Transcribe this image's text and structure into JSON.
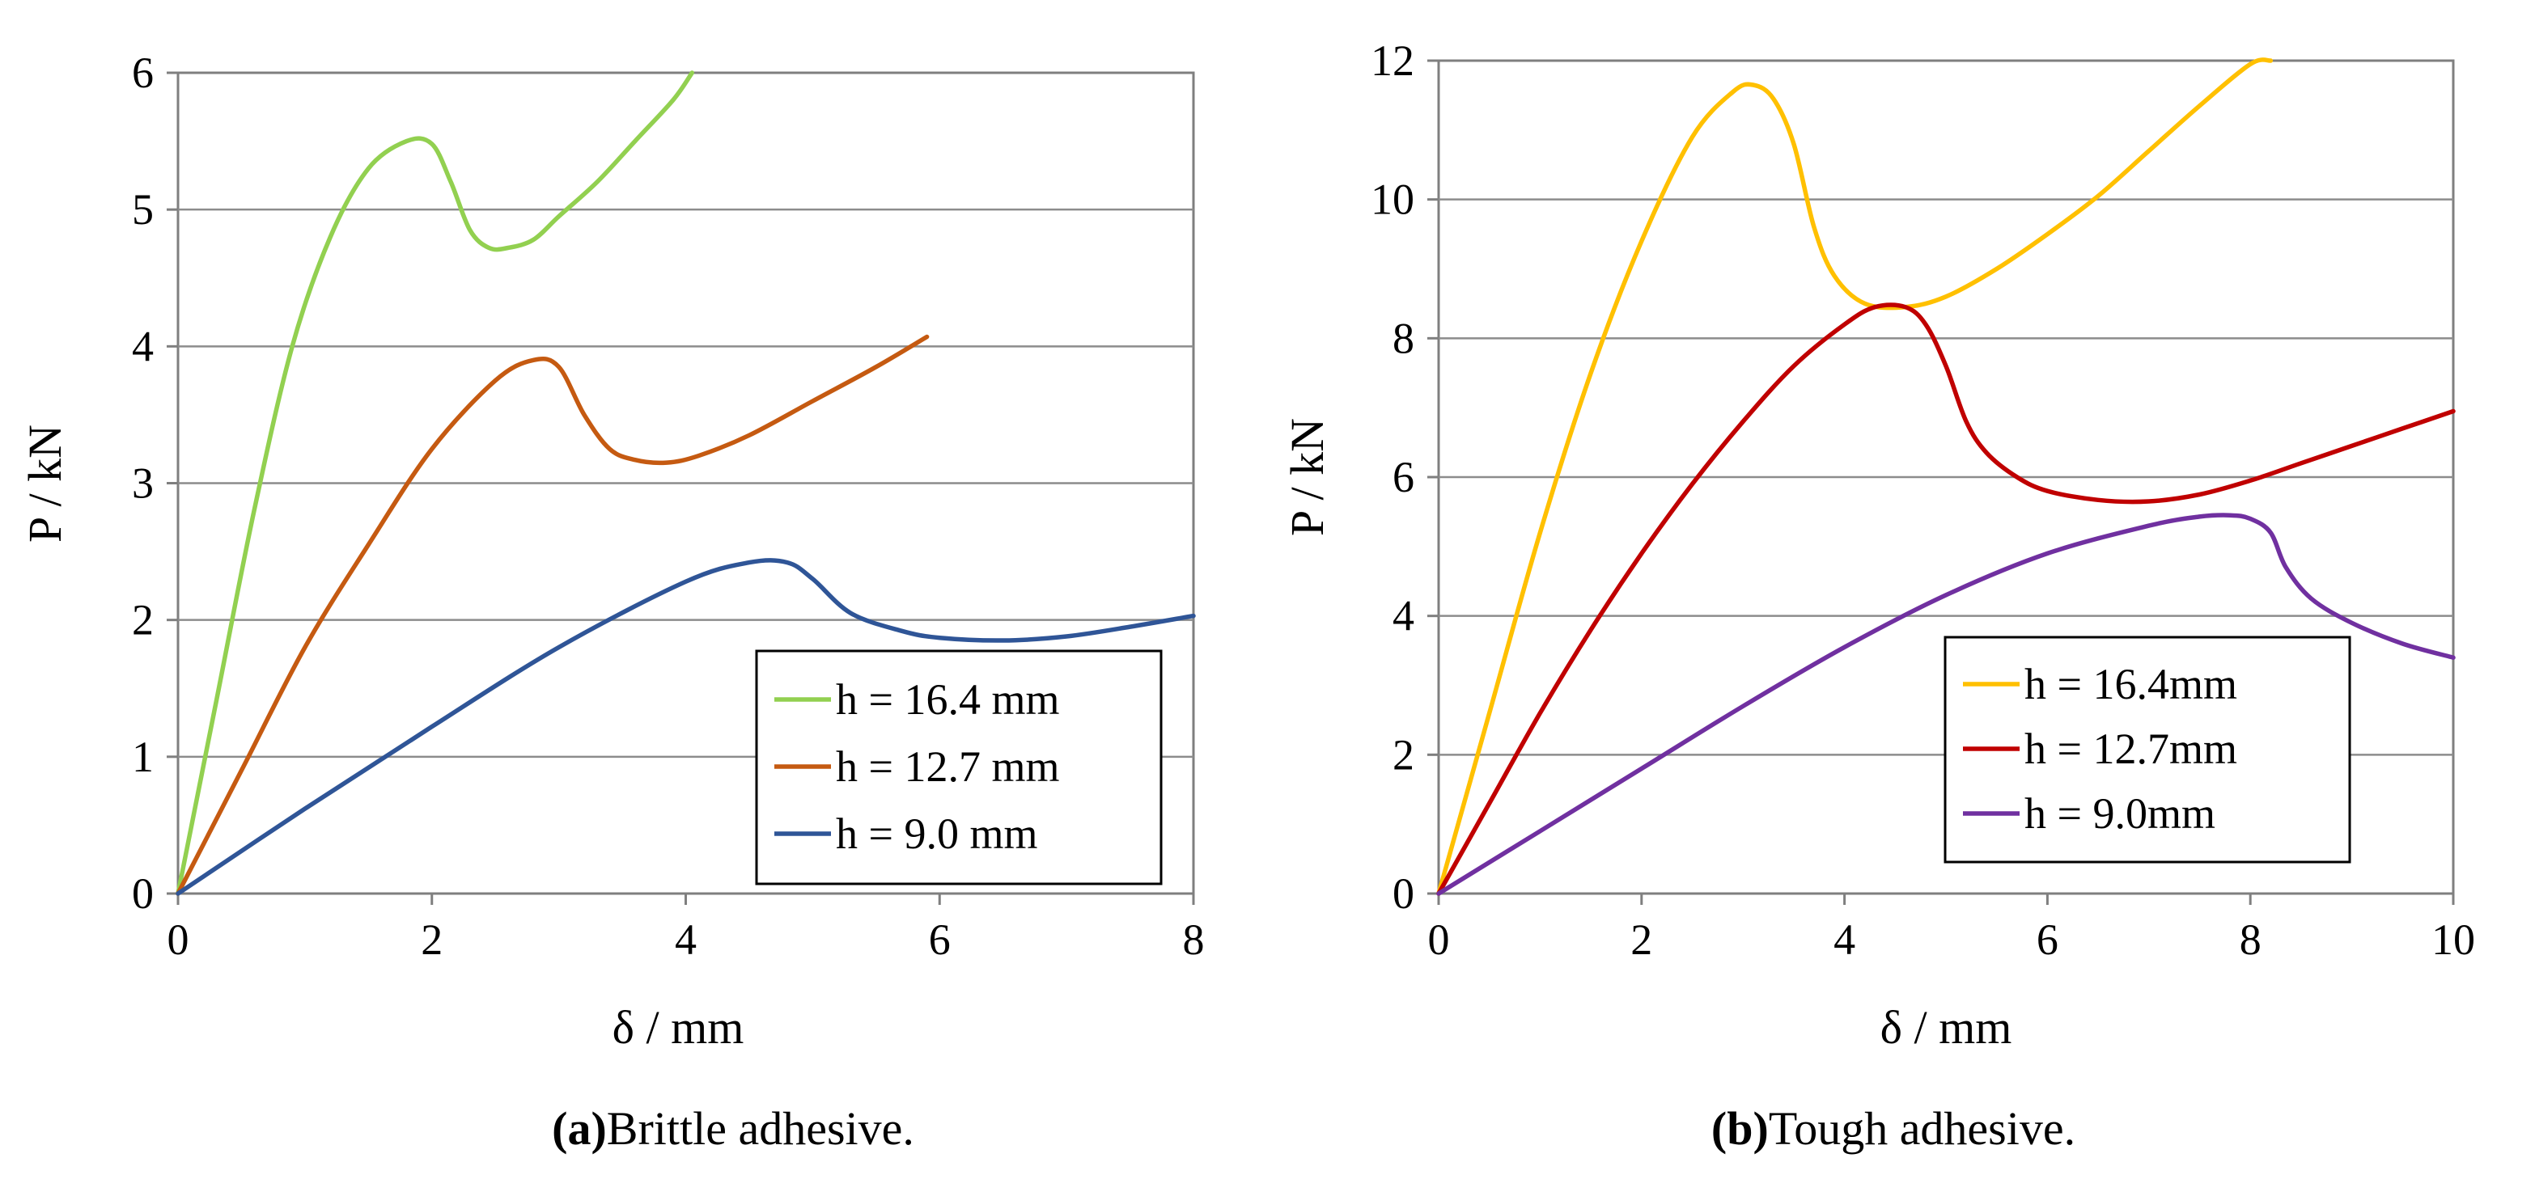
{
  "chart_data": [
    {
      "type": "line",
      "id": "a",
      "caption_label": "a",
      "caption_text": "Brittle adhesive.",
      "xlabel": "δ / mm",
      "ylabel": "P / kN",
      "xlim": [
        0,
        8
      ],
      "ylim": [
        0,
        6
      ],
      "xticks": [
        "0",
        "2",
        "4",
        "6",
        "8"
      ],
      "yticks": [
        "0",
        "1",
        "2",
        "3",
        "4",
        "5",
        "6"
      ],
      "grid": "horizontal",
      "legend_position": "bottom-right",
      "series": [
        {
          "name": "h = 16.4 mm",
          "color": "#92D050",
          "x": [
            0,
            0.3,
            0.6,
            0.9,
            1.2,
            1.5,
            1.8,
            2.0,
            2.15,
            2.3,
            2.45,
            2.6,
            2.8,
            3.0,
            3.3,
            3.6,
            3.9,
            4.05
          ],
          "y": [
            0,
            1.4,
            2.8,
            4.0,
            4.8,
            5.3,
            5.5,
            5.48,
            5.2,
            4.85,
            4.72,
            4.72,
            4.78,
            4.95,
            5.2,
            5.5,
            5.8,
            6.0
          ]
        },
        {
          "name": "h = 12.7 mm",
          "color": "#C55A11",
          "x": [
            0,
            0.5,
            1.0,
            1.5,
            2.0,
            2.5,
            2.8,
            3.0,
            3.2,
            3.4,
            3.6,
            3.85,
            4.1,
            4.5,
            5.0,
            5.5,
            5.9
          ],
          "y": [
            0,
            0.9,
            1.8,
            2.55,
            3.25,
            3.75,
            3.9,
            3.85,
            3.5,
            3.25,
            3.17,
            3.15,
            3.2,
            3.35,
            3.6,
            3.85,
            4.07
          ]
        },
        {
          "name": "h = 9.0 mm",
          "color": "#2F5597",
          "x": [
            0,
            1.0,
            2.0,
            3.0,
            4.0,
            4.5,
            4.8,
            5.0,
            5.3,
            5.7,
            6.0,
            6.5,
            7.0,
            7.5,
            8.0
          ],
          "y": [
            0,
            0.62,
            1.22,
            1.8,
            2.28,
            2.42,
            2.42,
            2.3,
            2.05,
            1.92,
            1.87,
            1.85,
            1.88,
            1.95,
            2.03
          ]
        }
      ]
    },
    {
      "type": "line",
      "id": "b",
      "caption_label": "b",
      "caption_text": "Tough adhesive.",
      "xlabel": "δ / mm",
      "ylabel": "P / kN",
      "xlim": [
        0,
        10
      ],
      "ylim": [
        0,
        12
      ],
      "xticks": [
        "0",
        "2",
        "4",
        "6",
        "8",
        "10"
      ],
      "yticks": [
        "0",
        "2",
        "4",
        "6",
        "8",
        "10",
        "12"
      ],
      "grid": "horizontal",
      "legend_position": "bottom-right",
      "series": [
        {
          "name": "h = 16.4mm",
          "color": "#FFC000",
          "x": [
            0,
            0.5,
            1.0,
            1.5,
            2.0,
            2.5,
            2.9,
            3.1,
            3.3,
            3.5,
            3.7,
            3.9,
            4.2,
            4.6,
            5.0,
            5.5,
            6.0,
            6.5,
            7.0,
            7.5,
            8.0,
            8.2
          ],
          "y": [
            0,
            2.6,
            5.2,
            7.5,
            9.4,
            10.9,
            11.55,
            11.65,
            11.45,
            10.8,
            9.6,
            8.9,
            8.5,
            8.45,
            8.6,
            9.0,
            9.5,
            10.05,
            10.7,
            11.35,
            11.95,
            12.0
          ],
          "note": "continues beyond ylim"
        },
        {
          "name": "h = 12.7mm",
          "color": "#C00000",
          "x": [
            0,
            0.5,
            1.0,
            1.5,
            2.0,
            2.5,
            3.0,
            3.5,
            4.0,
            4.3,
            4.6,
            4.8,
            5.0,
            5.2,
            5.4,
            5.7,
            6.0,
            6.5,
            7.0,
            7.5,
            8.0,
            8.5,
            9.0,
            9.5,
            10.0
          ],
          "y": [
            0,
            1.3,
            2.6,
            3.8,
            4.9,
            5.9,
            6.8,
            7.6,
            8.2,
            8.45,
            8.45,
            8.2,
            7.6,
            6.8,
            6.35,
            6.0,
            5.8,
            5.67,
            5.65,
            5.75,
            5.95,
            6.2,
            6.45,
            6.7,
            6.95
          ]
        },
        {
          "name": "h = 9.0mm",
          "color": "#7030A0",
          "x": [
            0,
            1.0,
            2.0,
            3.0,
            4.0,
            5.0,
            6.0,
            7.0,
            7.5,
            7.8,
            8.0,
            8.2,
            8.35,
            8.6,
            9.0,
            9.5,
            10.0
          ],
          "y": [
            0,
            0.9,
            1.8,
            2.7,
            3.55,
            4.3,
            4.9,
            5.3,
            5.43,
            5.45,
            5.4,
            5.2,
            4.7,
            4.25,
            3.9,
            3.6,
            3.4
          ]
        }
      ]
    }
  ]
}
